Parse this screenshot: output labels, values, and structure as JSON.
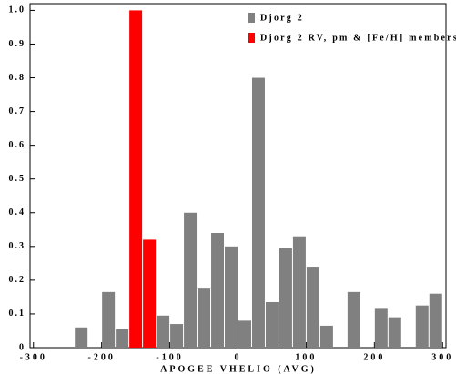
{
  "chart_data": {
    "type": "histogram",
    "xlabel": "APOGEE VHELIO (AVG)",
    "bins": [
      -240,
      -220,
      -200,
      -180,
      -160,
      -140,
      -120,
      -100,
      -80,
      -60,
      -40,
      -20,
      0,
      20,
      40,
      60,
      80,
      100,
      120,
      140,
      160,
      180,
      200,
      220,
      240,
      260,
      280,
      300
    ],
    "series": [
      {
        "name": "Djorg 2",
        "color": "#808080",
        "values": [
          0.06,
          0,
          0.165,
          0.055,
          0,
          0,
          0.095,
          0.07,
          0.4,
          0.175,
          0.34,
          0.3,
          0.08,
          0.8,
          0.135,
          0.295,
          0.33,
          0.24,
          0.065,
          0,
          0.165,
          0,
          0.115,
          0.09,
          0,
          0.125,
          0.16
        ]
      },
      {
        "name": "Djorg 2 RV, pm & [Fe/H] members",
        "color": "#ff0000",
        "values": [
          0,
          0,
          0,
          0,
          1.0,
          0.32,
          0,
          0,
          0,
          0,
          0,
          0,
          0,
          0,
          0,
          0,
          0,
          0,
          0,
          0,
          0,
          0,
          0,
          0,
          0,
          0,
          0
        ]
      }
    ],
    "xlim": [
      -305,
      305
    ],
    "xticks": [
      -300,
      -200,
      -100,
      0,
      100,
      200,
      300
    ],
    "ylim": [
      0,
      1.02
    ],
    "yticks": [
      0,
      0.1,
      0.2,
      0.3,
      0.4,
      0.5,
      0.6,
      0.7,
      0.8,
      0.9,
      {
        "value": 1,
        "label": "1.0"
      }
    ],
    "legend": "upper right"
  }
}
